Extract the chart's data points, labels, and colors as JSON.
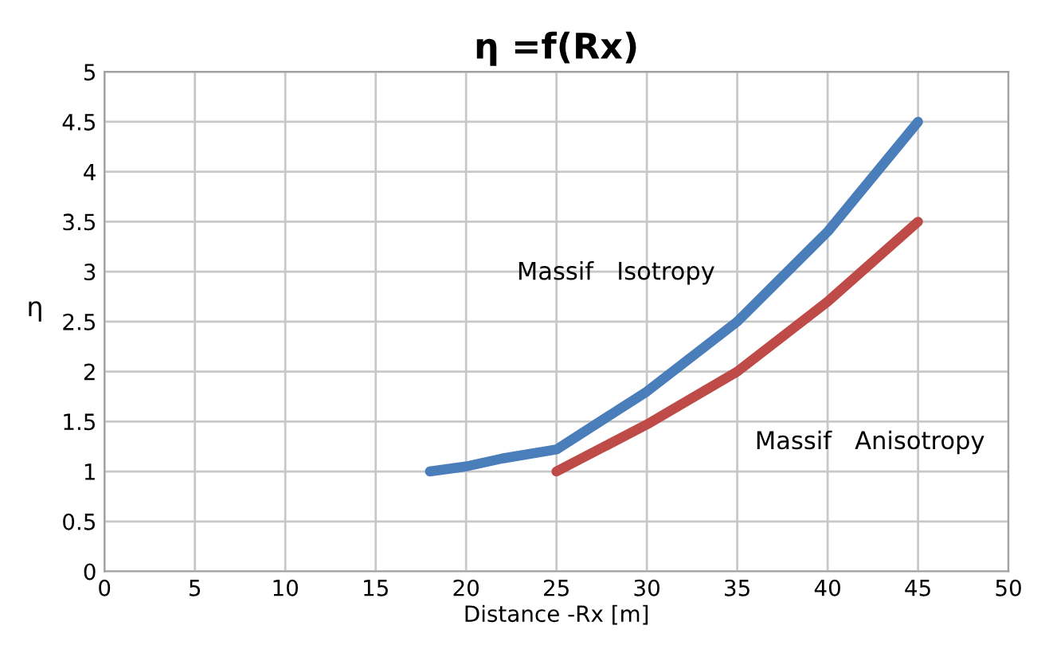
{
  "chart_data": {
    "type": "line",
    "title": "η =f(Rx)",
    "xlabel": "Distance -Rx [m]",
    "ylabel": "η",
    "series": [
      {
        "name": "Massif   Isotropy",
        "color": "#4a7ebb",
        "x": [
          18,
          20,
          22,
          25,
          30,
          35,
          40,
          45
        ],
        "values": [
          1.0,
          1.05,
          1.13,
          1.22,
          1.8,
          2.5,
          3.4,
          4.5
        ]
      },
      {
        "name": "Massif   Anisotropy",
        "color": "#be4b48",
        "x": [
          25,
          30,
          35,
          40,
          45
        ],
        "values": [
          1.0,
          1.47,
          2.0,
          2.7,
          3.5
        ]
      }
    ],
    "xlim": [
      0,
      50
    ],
    "xticks": [
      0,
      5,
      10,
      15,
      20,
      25,
      30,
      35,
      40,
      45,
      50
    ],
    "ylim": [
      0,
      5
    ],
    "yticks": [
      0,
      0.5,
      1,
      1.5,
      2,
      2.5,
      3,
      3.5,
      4,
      4.5,
      5
    ],
    "grid": true,
    "legend": false,
    "marker": "none",
    "line_style": "solid"
  }
}
